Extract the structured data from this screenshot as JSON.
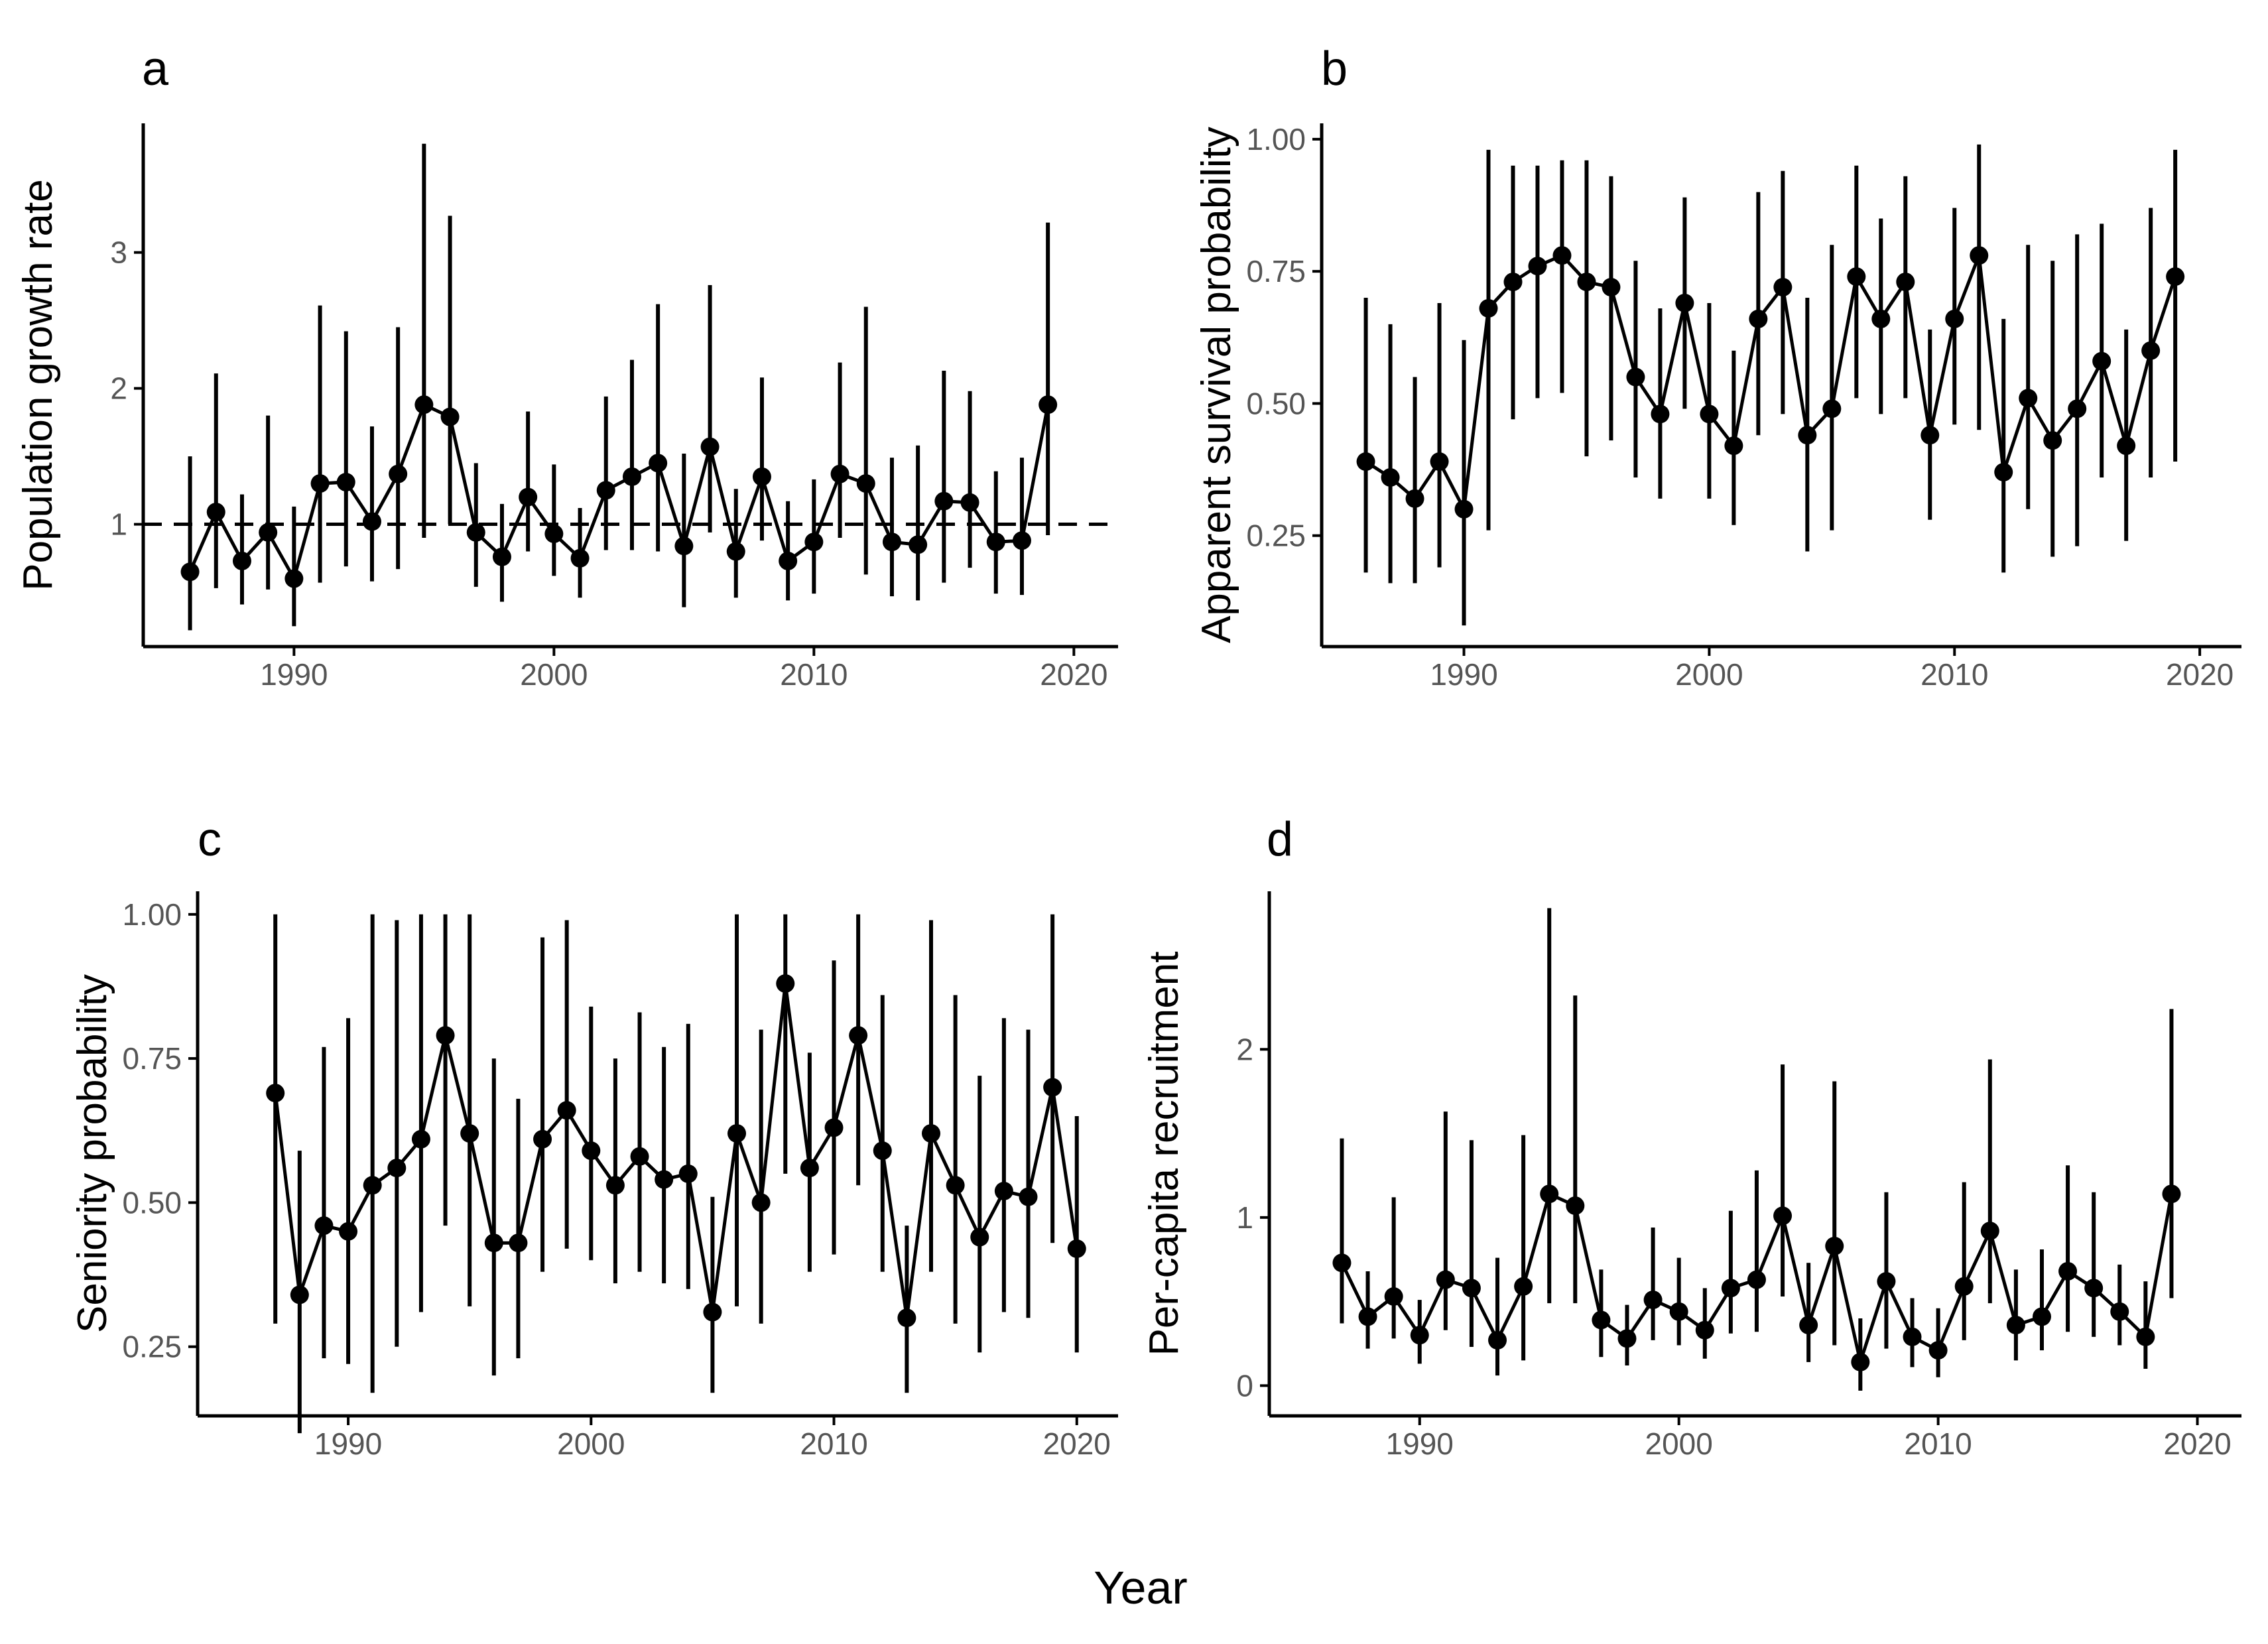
{
  "figure": {
    "shared_xlabel": "Year"
  },
  "chart_data": [
    {
      "panel": "a",
      "type": "line",
      "title": "",
      "xlabel": "",
      "ylabel": "Population growth rate",
      "xlim": [
        1984.2,
        2021.7
      ],
      "ylim": [
        0.1,
        3.95
      ],
      "xticks": [
        1990,
        2000,
        2010,
        2020
      ],
      "yticks": [
        1,
        2,
        3
      ],
      "ref_line": 1,
      "x": [
        1986,
        1987,
        1988,
        1989,
        1990,
        1991,
        1992,
        1993,
        1994,
        1995,
        1996,
        1997,
        1998,
        1999,
        2000,
        2001,
        2002,
        2003,
        2004,
        2005,
        2006,
        2007,
        2008,
        2009,
        2010,
        2011,
        2012,
        2013,
        2014,
        2015,
        2016,
        2017,
        2018,
        2019
      ],
      "y": [
        0.65,
        1.09,
        0.73,
        0.94,
        0.6,
        1.3,
        1.31,
        1.02,
        1.37,
        1.88,
        1.79,
        0.94,
        0.76,
        1.2,
        0.93,
        0.75,
        1.25,
        1.35,
        1.45,
        0.84,
        1.57,
        0.8,
        1.35,
        0.73,
        0.87,
        1.37,
        1.3,
        0.87,
        0.85,
        1.17,
        1.16,
        0.87,
        0.88,
        1.88
      ],
      "lower": [
        0.22,
        0.53,
        0.41,
        0.52,
        0.25,
        0.57,
        0.69,
        0.58,
        0.67,
        0.9,
        1.0,
        0.54,
        0.43,
        0.8,
        0.62,
        0.46,
        0.81,
        0.81,
        0.8,
        0.39,
        0.94,
        0.46,
        0.88,
        0.44,
        0.49,
        0.9,
        0.63,
        0.47,
        0.44,
        0.57,
        0.68,
        0.49,
        0.48,
        0.92
      ],
      "upper": [
        1.5,
        2.11,
        1.22,
        1.8,
        1.13,
        2.61,
        2.42,
        1.72,
        2.45,
        3.8,
        3.27,
        1.45,
        1.15,
        1.83,
        1.44,
        1.12,
        1.94,
        2.21,
        2.62,
        1.52,
        2.76,
        1.26,
        2.08,
        1.17,
        1.33,
        2.19,
        2.6,
        1.49,
        1.58,
        2.13,
        1.98,
        1.39,
        1.49,
        3.22
      ]
    },
    {
      "panel": "b",
      "type": "line",
      "title": "",
      "xlabel": "",
      "ylabel": "Apparent survival probability",
      "xlim": [
        1984.2,
        2021.7
      ],
      "ylim": [
        0.04,
        1.03
      ],
      "xticks": [
        1990,
        2000,
        2010,
        2020
      ],
      "yticks": [
        0.25,
        0.5,
        0.75,
        1.0
      ],
      "ytick_labels": [
        "0.25",
        "0.50",
        "0.75",
        "1.00"
      ],
      "x": [
        1986,
        1987,
        1988,
        1989,
        1990,
        1991,
        1992,
        1993,
        1994,
        1995,
        1996,
        1997,
        1998,
        1999,
        2000,
        2001,
        2002,
        2003,
        2004,
        2005,
        2006,
        2007,
        2008,
        2009,
        2010,
        2011,
        2012,
        2013,
        2014,
        2015,
        2016,
        2017,
        2018,
        2019
      ],
      "y": [
        0.39,
        0.36,
        0.32,
        0.39,
        0.3,
        0.68,
        0.73,
        0.76,
        0.78,
        0.73,
        0.72,
        0.55,
        0.48,
        0.69,
        0.48,
        0.42,
        0.66,
        0.72,
        0.44,
        0.49,
        0.74,
        0.66,
        0.73,
        0.44,
        0.66,
        0.78,
        0.37,
        0.51,
        0.43,
        0.49,
        0.58,
        0.42,
        0.6,
        0.74
      ],
      "lower": [
        0.18,
        0.16,
        0.16,
        0.19,
        0.08,
        0.26,
        0.47,
        0.51,
        0.52,
        0.4,
        0.43,
        0.36,
        0.32,
        0.49,
        0.32,
        0.27,
        0.44,
        0.48,
        0.22,
        0.26,
        0.51,
        0.48,
        0.51,
        0.28,
        0.46,
        0.45,
        0.18,
        0.3,
        0.21,
        0.23,
        0.36,
        0.24,
        0.36,
        0.39
      ],
      "upper": [
        0.7,
        0.65,
        0.55,
        0.69,
        0.62,
        0.98,
        0.95,
        0.95,
        0.96,
        0.96,
        0.93,
        0.77,
        0.68,
        0.89,
        0.69,
        0.6,
        0.9,
        0.94,
        0.7,
        0.8,
        0.95,
        0.85,
        0.93,
        0.64,
        0.87,
        0.99,
        0.66,
        0.8,
        0.77,
        0.82,
        0.84,
        0.64,
        0.87,
        0.98
      ]
    },
    {
      "panel": "c",
      "type": "line",
      "title": "",
      "xlabel": "",
      "ylabel": "Seniority probability",
      "xlim": [
        1983.8,
        2021.7
      ],
      "ylim": [
        0.13,
        1.04
      ],
      "xticks": [
        1990,
        2000,
        2010,
        2020
      ],
      "yticks": [
        0.25,
        0.5,
        0.75,
        1.0
      ],
      "ytick_labels": [
        "0.25",
        "0.50",
        "0.75",
        "1.00"
      ],
      "x": [
        1987,
        1988,
        1989,
        1990,
        1991,
        1992,
        1993,
        1994,
        1995,
        1996,
        1997,
        1998,
        1999,
        2000,
        2001,
        2002,
        2003,
        2004,
        2005,
        2006,
        2007,
        2008,
        2009,
        2010,
        2011,
        2012,
        2013,
        2014,
        2015,
        2016,
        2017,
        2018,
        2019,
        2020
      ],
      "y": [
        0.69,
        0.34,
        0.46,
        0.45,
        0.53,
        0.56,
        0.61,
        0.79,
        0.62,
        0.43,
        0.43,
        0.61,
        0.66,
        0.59,
        0.53,
        0.58,
        0.54,
        0.55,
        0.31,
        0.62,
        0.5,
        0.88,
        0.56,
        0.63,
        0.79,
        0.59,
        0.3,
        0.62,
        0.53,
        0.44,
        0.52,
        0.51,
        0.7,
        0.42
      ],
      "lower": [
        0.29,
        0.1,
        0.23,
        0.22,
        0.17,
        0.25,
        0.31,
        0.46,
        0.32,
        0.2,
        0.23,
        0.38,
        0.42,
        0.4,
        0.36,
        0.38,
        0.36,
        0.35,
        0.17,
        0.32,
        0.29,
        0.55,
        0.38,
        0.41,
        0.53,
        0.38,
        0.17,
        0.38,
        0.29,
        0.24,
        0.31,
        0.3,
        0.43,
        0.24
      ],
      "upper": [
        1.0,
        0.59,
        0.77,
        0.82,
        1.0,
        0.99,
        1.0,
        1.0,
        1.0,
        0.75,
        0.68,
        0.96,
        0.99,
        0.84,
        0.75,
        0.83,
        0.77,
        0.81,
        0.51,
        1.0,
        0.8,
        1.0,
        0.76,
        0.92,
        1.0,
        0.86,
        0.46,
        0.99,
        0.86,
        0.72,
        0.82,
        0.8,
        1.0,
        0.65
      ]
    },
    {
      "panel": "d",
      "type": "line",
      "title": "",
      "xlabel": "",
      "ylabel": "Per-capita recruitment",
      "xlim": [
        1984.2,
        2021.7
      ],
      "ylim": [
        -0.18,
        2.94
      ],
      "xticks": [
        1990,
        2000,
        2010,
        2020
      ],
      "yticks": [
        0,
        1,
        2
      ],
      "x": [
        1987,
        1988,
        1989,
        1990,
        1991,
        1992,
        1993,
        1994,
        1995,
        1996,
        1997,
        1998,
        1999,
        2000,
        2001,
        2002,
        2003,
        2004,
        2005,
        2006,
        2007,
        2008,
        2009,
        2010,
        2011,
        2012,
        2013,
        2014,
        2015,
        2016,
        2017,
        2018,
        2019
      ],
      "y": [
        0.73,
        0.41,
        0.53,
        0.3,
        0.63,
        0.58,
        0.27,
        0.59,
        1.14,
        1.07,
        0.39,
        0.28,
        0.51,
        0.44,
        0.33,
        0.58,
        0.63,
        1.01,
        0.36,
        0.83,
        0.14,
        0.62,
        0.29,
        0.21,
        0.59,
        0.92,
        0.36,
        0.41,
        0.68,
        0.58,
        0.44,
        0.29,
        1.14
      ],
      "lower": [
        0.37,
        0.22,
        0.28,
        0.13,
        0.33,
        0.23,
        0.06,
        0.15,
        0.49,
        0.49,
        0.17,
        0.12,
        0.27,
        0.24,
        0.16,
        0.31,
        0.32,
        0.53,
        0.14,
        0.24,
        -0.03,
        0.22,
        0.11,
        0.05,
        0.27,
        0.49,
        0.15,
        0.21,
        0.32,
        0.29,
        0.24,
        0.1,
        0.52
      ],
      "upper": [
        1.47,
        0.68,
        1.12,
        0.51,
        1.63,
        1.46,
        0.76,
        1.49,
        2.84,
        2.32,
        0.69,
        0.48,
        0.94,
        0.76,
        0.58,
        1.04,
        1.28,
        1.91,
        0.73,
        1.81,
        0.4,
        1.15,
        0.52,
        0.46,
        1.21,
        1.94,
        0.69,
        0.81,
        1.31,
        1.15,
        0.72,
        0.62,
        2.24
      ]
    }
  ]
}
